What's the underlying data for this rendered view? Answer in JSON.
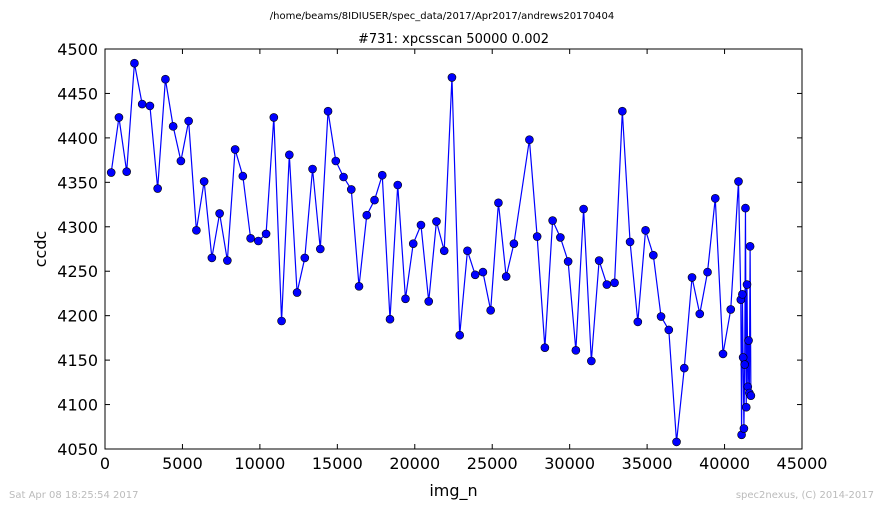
{
  "figure": {
    "suptitle": "/home/beams/8IDIUSER/spec_data/2017/Apr2017/andrews20170404",
    "timestamp": "Sat Apr 08 18:25:54 2017",
    "credit": "spec2nexus, (C) 2014-2017"
  },
  "colors": {
    "line": "#0000ff",
    "marker": "#0000ff",
    "marker_edge": "#000000",
    "footer_text": "#bbbbbb"
  },
  "chart_data": {
    "type": "line",
    "title": "#731: xpcsscan 50000 0.002",
    "xlabel": "img_n",
    "ylabel": "ccdc",
    "xlim": [
      0,
      45000
    ],
    "ylim": [
      4050,
      4500
    ],
    "xticks": [
      0,
      5000,
      10000,
      15000,
      20000,
      25000,
      30000,
      35000,
      40000,
      45000
    ],
    "yticks": [
      4050,
      4100,
      4150,
      4200,
      4250,
      4300,
      4350,
      4400,
      4450,
      4500
    ],
    "grid": false,
    "legend": false,
    "markers": true,
    "series": [
      {
        "x": [
          400,
          900,
          1400,
          1900,
          2400,
          2900,
          3400,
          3900,
          4400,
          4900,
          5400,
          5900,
          6400,
          6900,
          7400,
          7900,
          8400,
          8900,
          9400,
          9900,
          10400,
          10900,
          11400,
          11900,
          12400,
          12900,
          13400,
          13900,
          14400,
          14900,
          15400,
          15900,
          16400,
          16900,
          17400,
          17900,
          18400,
          18900,
          19400,
          19900,
          20400,
          20900,
          21400,
          21900,
          22400,
          22900,
          23400,
          23900,
          24400,
          24900,
          25400,
          25900,
          26400,
          27400,
          27900,
          28400,
          28900,
          29400,
          29900,
          30400,
          30900,
          31400,
          31900,
          32400,
          32900,
          33400,
          33900,
          34400,
          34900,
          35400,
          35900,
          36400,
          36900,
          37400,
          37900,
          38400,
          38900,
          39400,
          39900,
          40400,
          40900,
          41050,
          41100,
          41150,
          41200,
          41250,
          41300,
          41350,
          41400,
          41450,
          41500,
          41550,
          41600,
          41650,
          41700
        ],
        "y": [
          4361,
          4423,
          4362,
          4484,
          4438,
          4436,
          4343,
          4466,
          4413,
          4374,
          4419,
          4296,
          4351,
          4265,
          4315,
          4262,
          4387,
          4357,
          4287,
          4284,
          4292,
          4423,
          4194,
          4381,
          4226,
          4265,
          4365,
          4275,
          4430,
          4374,
          4356,
          4342,
          4233,
          4313,
          4330,
          4358,
          4196,
          4347,
          4219,
          4281,
          4302,
          4216,
          4306,
          4273,
          4468,
          4178,
          4273,
          4246,
          4249,
          4206,
          4327,
          4244,
          4281,
          4398,
          4289,
          4164,
          4307,
          4288,
          4261,
          4161,
          4320,
          4149,
          4262,
          4235,
          4237,
          4430,
          4283,
          4193,
          4296,
          4268,
          4199,
          4184,
          4058,
          4141,
          4243,
          4202,
          4249,
          4332,
          4157,
          4207,
          4351,
          4218,
          4066,
          4224,
          4153,
          4073,
          4145,
          4321,
          4097,
          4235,
          4120,
          4172,
          4113,
          4278,
          4110
        ]
      }
    ]
  }
}
